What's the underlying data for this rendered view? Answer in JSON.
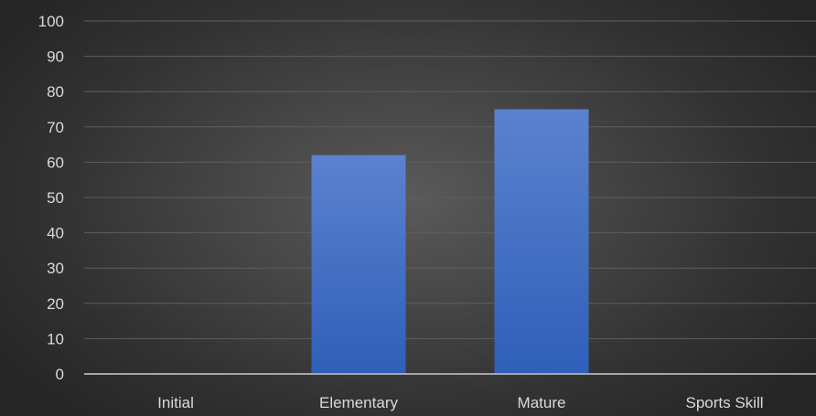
{
  "chart_data": {
    "type": "bar",
    "title": "",
    "xlabel": "",
    "ylabel": "",
    "categories": [
      "Initial",
      "Elementary",
      "Mature",
      "Sports Skill"
    ],
    "values": [
      0,
      62,
      75,
      0
    ],
    "ylim": [
      0,
      100
    ],
    "yticks": [
      "0",
      "10",
      "20",
      "30",
      "40",
      "50",
      "60",
      "70",
      "80",
      "90",
      "100"
    ],
    "grid": true,
    "legend": "none",
    "colors": {
      "bar_top": "#5b82cf",
      "bar_bottom": "#2f5fb8",
      "grid": "#5e5e5e",
      "axis": "#a6a6a6",
      "text": "#d9d9d9"
    }
  }
}
